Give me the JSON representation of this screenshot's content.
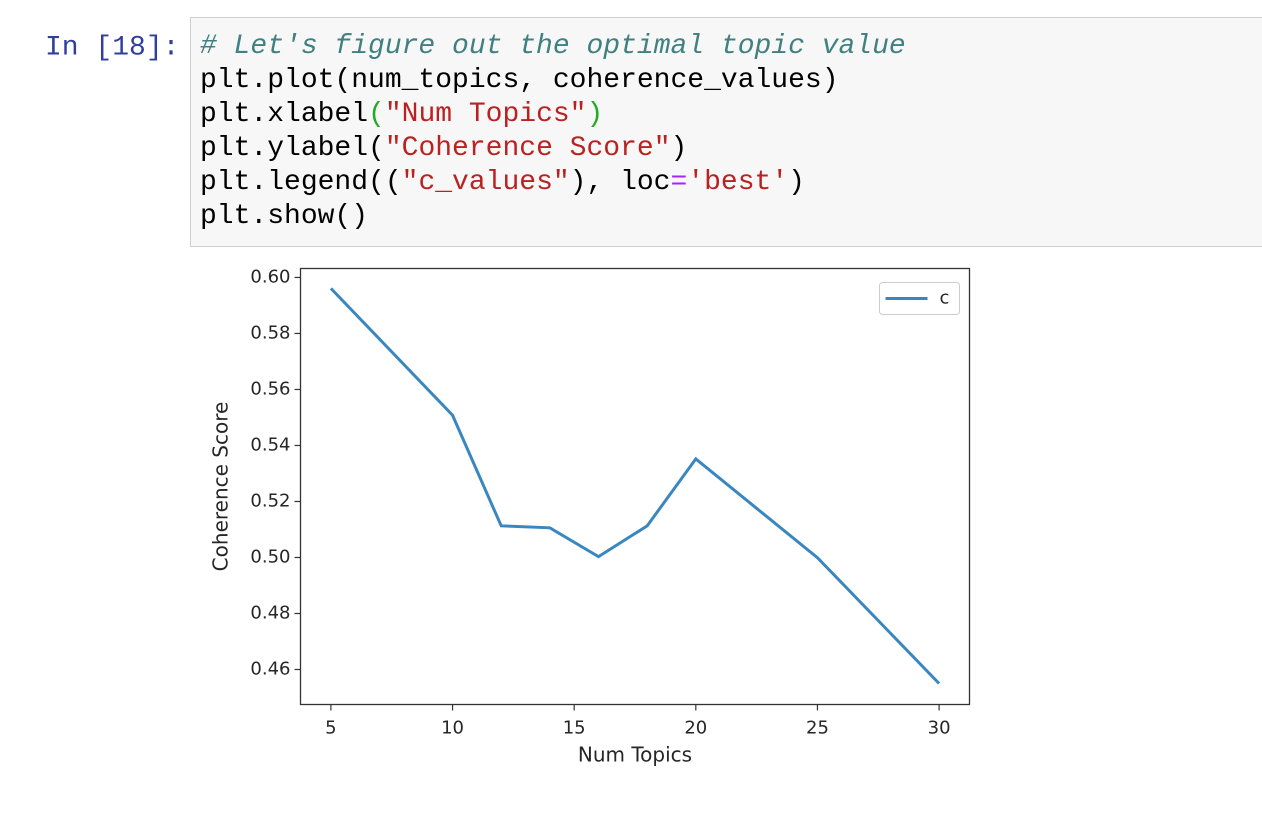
{
  "cell": {
    "prompt": "In [18]:",
    "code": [
      [
        {
          "text": "# Let's figure out the optimal topic value",
          "color": "#408080",
          "font_style": "italic"
        }
      ],
      [
        {
          "text": "plt.plot(num_topics, coherence_values)",
          "color": "#000000"
        }
      ],
      [
        {
          "text": "plt.xlabel",
          "color": "#000000"
        },
        {
          "text": "(",
          "color": "#22aa22"
        },
        {
          "text": "\"Num Topics\"",
          "color": "#ba2121"
        },
        {
          "text": ")",
          "color": "#22aa22"
        }
      ],
      [
        {
          "text": "plt.ylabel(",
          "color": "#000000"
        },
        {
          "text": "\"Coherence Score\"",
          "color": "#ba2121"
        },
        {
          "text": ")",
          "color": "#000000"
        }
      ],
      [
        {
          "text": "plt.legend((",
          "color": "#000000"
        },
        {
          "text": "\"c_values\"",
          "color": "#ba2121"
        },
        {
          "text": "), loc",
          "color": "#000000"
        },
        {
          "text": "=",
          "color": "#aa22ff"
        },
        {
          "text": "'best'",
          "color": "#ba2121"
        },
        {
          "text": ")",
          "color": "#000000"
        }
      ],
      [
        {
          "text": "plt.show()",
          "color": "#000000"
        }
      ]
    ]
  },
  "chart_data": {
    "type": "line",
    "xlabel": "Num Topics",
    "ylabel": "Coherence Score",
    "x": [
      5,
      10,
      12,
      14,
      16,
      18,
      20,
      25,
      30
    ],
    "series": [
      {
        "name": "c",
        "color": "#3a87c0",
        "values": [
          0.5961,
          0.5508,
          0.5113,
          0.5106,
          0.5003,
          0.5113,
          0.5352,
          0.4999,
          0.455
        ]
      }
    ],
    "xlim": [
      3.75,
      31.25
    ],
    "ylim": [
      0.4475,
      0.6032
    ],
    "xticks": [
      5,
      10,
      15,
      20,
      25,
      30
    ],
    "yticks": [
      0.46,
      0.48,
      {
        "value": 0.5,
        "label": "0.50"
      },
      0.52,
      0.54,
      0.56,
      0.58,
      {
        "value": 0.6,
        "label": "0.60"
      }
    ],
    "grid": false,
    "legend": "upper right"
  }
}
